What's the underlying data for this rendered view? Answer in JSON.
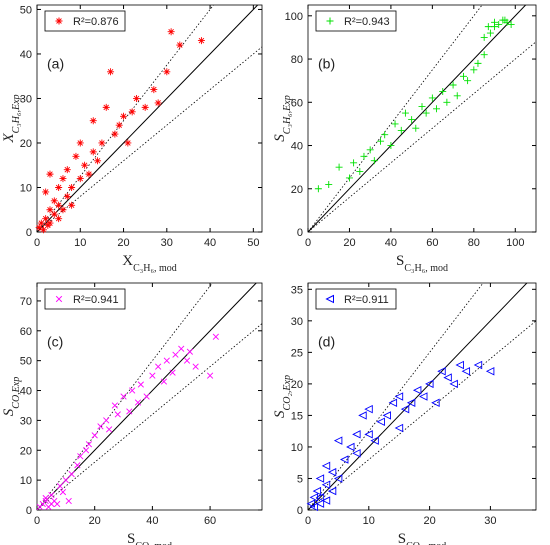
{
  "chart_data": [
    {
      "type": "scatter",
      "panel_label": "(a)",
      "xlabel": {
        "main": "X",
        "sub": "C₃H₆, mod"
      },
      "ylabel": {
        "main": "X",
        "sub": "C₃H₆,Exp"
      },
      "xlim": [
        0,
        52
      ],
      "ylim": [
        0,
        51
      ],
      "xticks": [
        0,
        10,
        20,
        30,
        40,
        50
      ],
      "yticks": [
        0,
        10,
        20,
        30,
        40,
        50
      ],
      "guide_slopes": [
        1,
        1.25,
        0.8
      ],
      "series": [
        {
          "name": "R²=0.876",
          "color": "#ff0000",
          "marker": "asterisk",
          "x": [
            0.5,
            1,
            1.5,
            2,
            2.5,
            3,
            3,
            4,
            4,
            5,
            5,
            6,
            6,
            7,
            7,
            8,
            9,
            10,
            10,
            11,
            12,
            13,
            13,
            14,
            15,
            16,
            17,
            18,
            19,
            20,
            21,
            22,
            23,
            25,
            27,
            28,
            30,
            31,
            33,
            38,
            2,
            3,
            5,
            8
          ],
          "values": [
            1,
            2,
            0.5,
            3,
            1.5,
            5,
            2,
            7,
            4,
            6,
            10,
            12,
            5,
            14,
            8,
            10,
            17,
            20,
            12,
            15,
            13,
            25,
            18,
            16,
            20,
            28,
            36,
            22,
            24,
            26,
            20,
            27,
            30,
            28,
            32,
            29,
            36,
            45,
            42,
            43,
            9,
            13,
            3,
            6
          ]
        }
      ]
    },
    {
      "type": "scatter",
      "panel_label": "(b)",
      "xlabel": {
        "main": "S",
        "sub": "C₃H₆, mod"
      },
      "ylabel": {
        "main": "S",
        "sub": "C₃H₆,Exp"
      },
      "xlim": [
        0,
        110
      ],
      "ylim": [
        0,
        105
      ],
      "xticks": [
        0,
        20,
        40,
        60,
        80,
        100
      ],
      "yticks": [
        0,
        20,
        40,
        60,
        80,
        100
      ],
      "guide_slopes": [
        1,
        1.25,
        0.8
      ],
      "series": [
        {
          "name": "R²=0.943",
          "color": "#00e000",
          "marker": "plus",
          "x": [
            5,
            10,
            15,
            20,
            22,
            25,
            27,
            30,
            32,
            35,
            37,
            40,
            42,
            45,
            47,
            50,
            52,
            55,
            57,
            60,
            62,
            65,
            67,
            70,
            72,
            75,
            77,
            80,
            82,
            85,
            87,
            88,
            90,
            92,
            94,
            96,
            98,
            85,
            90,
            95
          ],
          "values": [
            20,
            22,
            30,
            25,
            32,
            28,
            35,
            38,
            33,
            42,
            45,
            40,
            50,
            47,
            55,
            52,
            48,
            58,
            55,
            62,
            57,
            65,
            60,
            68,
            63,
            72,
            70,
            75,
            78,
            82,
            95,
            92,
            97,
            96,
            98,
            97,
            96,
            90,
            95,
            98
          ]
        }
      ]
    },
    {
      "type": "scatter",
      "panel_label": "(c)",
      "xlabel": {
        "main": "S",
        "sub": "CO, mod"
      },
      "ylabel": {
        "main": "S",
        "sub": "CO,Exp"
      },
      "xlim": [
        0,
        78
      ],
      "ylim": [
        0,
        76
      ],
      "xticks": [
        0,
        20,
        40,
        60
      ],
      "yticks": [
        0,
        10,
        20,
        30,
        40,
        50,
        60,
        70
      ],
      "guide_slopes": [
        1,
        1.25,
        0.8
      ],
      "series": [
        {
          "name": "R²=0.941",
          "color": "#ff00ff",
          "marker": "x",
          "x": [
            1,
            2,
            3,
            4,
            5,
            6,
            7,
            8,
            10,
            12,
            14,
            15,
            17,
            18,
            20,
            22,
            24,
            25,
            27,
            28,
            30,
            32,
            33,
            35,
            36,
            38,
            40,
            42,
            44,
            45,
            47,
            48,
            50,
            52,
            53,
            55,
            60,
            62,
            3,
            5,
            9,
            11
          ],
          "values": [
            1,
            2,
            3,
            1,
            5,
            3,
            2,
            8,
            10,
            12,
            15,
            18,
            20,
            22,
            25,
            28,
            30,
            27,
            35,
            32,
            38,
            33,
            40,
            36,
            42,
            38,
            45,
            48,
            43,
            50,
            46,
            52,
            54,
            50,
            53,
            48,
            45,
            58,
            4,
            2,
            6,
            3
          ]
        }
      ]
    },
    {
      "type": "scatter",
      "panel_label": "(d)",
      "xlabel": {
        "main": "S",
        "sub": "CO₂, mod"
      },
      "ylabel": {
        "main": "S",
        "sub": "CO₂,Exp"
      },
      "xlim": [
        0,
        37.5
      ],
      "ylim": [
        0,
        36
      ],
      "xticks": [
        0,
        10,
        20,
        30
      ],
      "yticks": [
        0,
        5,
        10,
        15,
        20,
        25,
        30,
        35
      ],
      "guide_slopes": [
        1,
        1.25,
        0.8
      ],
      "series": [
        {
          "name": "R²=0.911",
          "color": "#0000ff",
          "marker": "triangle-left",
          "x": [
            0.5,
            1,
            1,
            1.5,
            2,
            2,
            3,
            3,
            4,
            4,
            5,
            6,
            7,
            8,
            8,
            9,
            10,
            10,
            11,
            12,
            13,
            14,
            15,
            15,
            16,
            17,
            18,
            19,
            20,
            21,
            22,
            23,
            24,
            25,
            26,
            28,
            30,
            2,
            3,
            5
          ],
          "values": [
            1,
            2,
            0.5,
            3,
            1,
            2,
            4,
            1.5,
            3,
            6,
            5,
            8,
            10,
            12,
            9,
            15,
            12,
            16,
            11,
            14,
            15,
            17,
            13,
            18,
            16,
            17,
            19,
            18,
            20,
            17,
            22,
            21,
            20,
            23,
            22,
            23,
            22,
            5,
            7,
            11
          ]
        }
      ]
    }
  ]
}
